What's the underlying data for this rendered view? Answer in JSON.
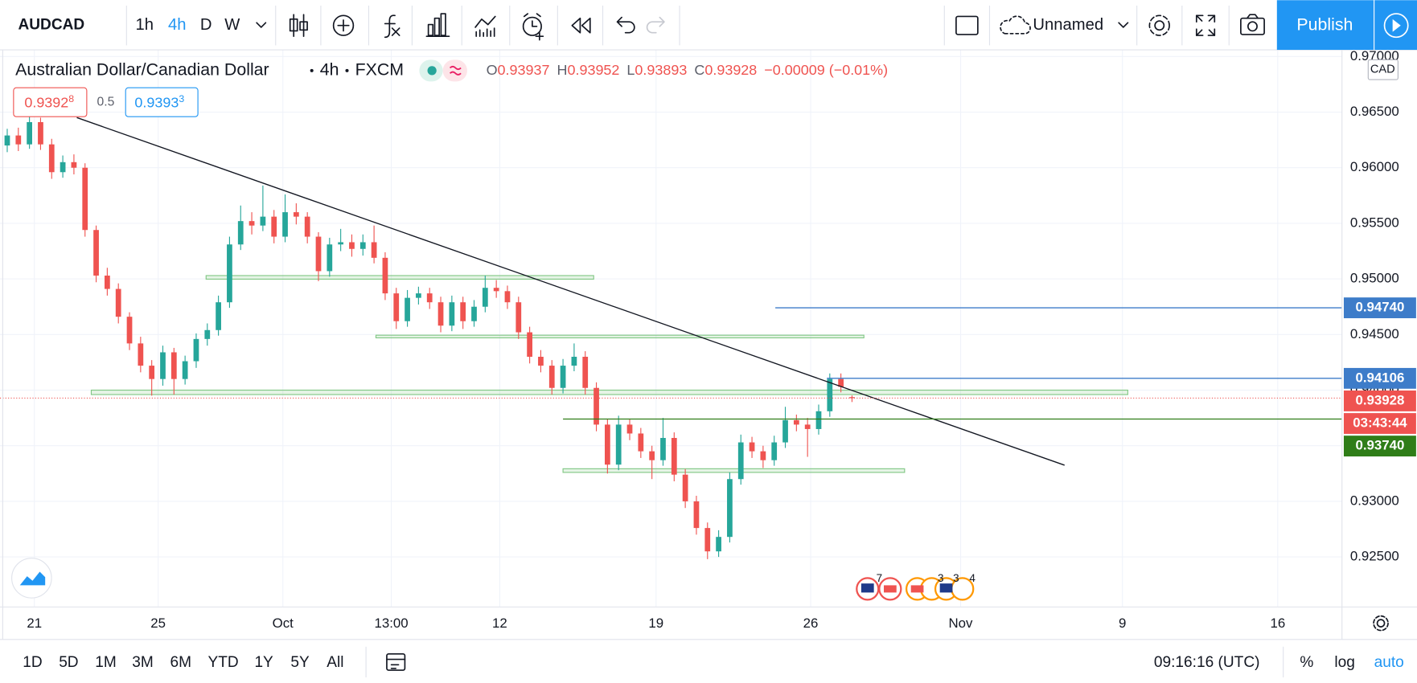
{
  "toolbar": {
    "symbol": "AUDCAD",
    "intervals": [
      "1h",
      "4h",
      "D",
      "W"
    ],
    "active_interval": "4h",
    "layout_name": "Unnamed",
    "publish": "Publish"
  },
  "legend": {
    "name": "Australian Dollar/Canadian Dollar",
    "interval": "4h",
    "exchange": "FXCM",
    "ohlc": [
      {
        "key": "O",
        "value": "0.93937"
      },
      {
        "key": "H",
        "value": "0.93952"
      },
      {
        "key": "L",
        "value": "0.93893"
      },
      {
        "key": "C",
        "value": "0.93928"
      }
    ],
    "change": "−0.00009 (−0.01%)"
  },
  "price_boxes": {
    "sell": {
      "main": "0.9392",
      "pip": "8"
    },
    "spread": "0.5",
    "buy": {
      "main": "0.9393",
      "pip": "3"
    }
  },
  "chart_data": {
    "type": "candlestick",
    "currency": "CAD",
    "up_color": "#26a69a",
    "down_color": "#ef5350",
    "xlim": [
      -0.65,
      120.08
    ],
    "ylim": [
      0.9205,
      0.9706
    ],
    "xticks": [
      {
        "value": 2.44,
        "label": "21"
      },
      {
        "value": 13.58,
        "label": "25"
      },
      {
        "value": 24.8,
        "label": "Oct"
      },
      {
        "value": 34.55,
        "label": "13:00"
      },
      {
        "value": 44.31,
        "label": "12"
      },
      {
        "value": 58.37,
        "label": "19"
      },
      {
        "value": 72.28,
        "label": "26"
      },
      {
        "value": 85.77,
        "label": "Nov"
      },
      {
        "value": 100.33,
        "label": "9"
      },
      {
        "value": 114.3,
        "label": "16"
      }
    ],
    "yticks": [
      {
        "value": 0.925,
        "label": "0.92500"
      },
      {
        "value": 0.93,
        "label": "0.93000"
      },
      {
        "value": 0.935,
        "label": "0.93500"
      },
      {
        "value": 0.94,
        "label": "0.94000"
      },
      {
        "value": 0.945,
        "label": "0.94500"
      },
      {
        "value": 0.95,
        "label": "0.95000"
      },
      {
        "value": 0.955,
        "label": "0.95500"
      },
      {
        "value": 0.96,
        "label": "0.96000"
      },
      {
        "value": 0.965,
        "label": "0.96500"
      },
      {
        "value": 0.97,
        "label": "0.97000"
      }
    ],
    "grid": true,
    "ohlc": [
      [
        0.962,
        0.9635,
        0.9614,
        0.9629
      ],
      [
        0.9629,
        0.9636,
        0.9615,
        0.9621
      ],
      [
        0.9621,
        0.9647,
        0.9617,
        0.9641
      ],
      [
        0.9641,
        0.9645,
        0.9616,
        0.9621
      ],
      [
        0.9621,
        0.9626,
        0.959,
        0.9596
      ],
      [
        0.9596,
        0.9611,
        0.9591,
        0.9605
      ],
      [
        0.9605,
        0.9612,
        0.9594,
        0.96
      ],
      [
        0.96,
        0.9604,
        0.9538,
        0.9544
      ],
      [
        0.9544,
        0.9548,
        0.9497,
        0.9503
      ],
      [
        0.9503,
        0.951,
        0.9485,
        0.9491
      ],
      [
        0.9491,
        0.9496,
        0.946,
        0.9466
      ],
      [
        0.9466,
        0.947,
        0.9436,
        0.9442
      ],
      [
        0.9442,
        0.9448,
        0.9416,
        0.9422
      ],
      [
        0.9422,
        0.9427,
        0.9395,
        0.941
      ],
      [
        0.941,
        0.944,
        0.9404,
        0.9434
      ],
      [
        0.9434,
        0.9438,
        0.9396,
        0.941
      ],
      [
        0.941,
        0.9431,
        0.9405,
        0.9426
      ],
      [
        0.9426,
        0.9451,
        0.942,
        0.9446
      ],
      [
        0.9446,
        0.946,
        0.944,
        0.9454
      ],
      [
        0.9454,
        0.9485,
        0.9449,
        0.9479
      ],
      [
        0.9479,
        0.9538,
        0.9474,
        0.9531
      ],
      [
        0.9531,
        0.9566,
        0.9526,
        0.9552
      ],
      [
        0.9552,
        0.956,
        0.954,
        0.9548
      ],
      [
        0.9548,
        0.9584,
        0.9543,
        0.9556
      ],
      [
        0.9556,
        0.9562,
        0.9532,
        0.9538
      ],
      [
        0.9538,
        0.9576,
        0.9533,
        0.956
      ],
      [
        0.956,
        0.9568,
        0.9549,
        0.9556
      ],
      [
        0.9556,
        0.956,
        0.9532,
        0.9538
      ],
      [
        0.9538,
        0.9542,
        0.9498,
        0.9507
      ],
      [
        0.9507,
        0.9537,
        0.9502,
        0.9531
      ],
      [
        0.9531,
        0.9545,
        0.9525,
        0.9533
      ],
      [
        0.9533,
        0.954,
        0.952,
        0.9527
      ],
      [
        0.9527,
        0.954,
        0.9521,
        0.9533
      ],
      [
        0.9533,
        0.9548,
        0.9514,
        0.9519
      ],
      [
        0.9519,
        0.9524,
        0.9481,
        0.9487
      ],
      [
        0.9487,
        0.9492,
        0.9455,
        0.9462
      ],
      [
        0.9462,
        0.949,
        0.9457,
        0.9483
      ],
      [
        0.9483,
        0.9493,
        0.9477,
        0.9487
      ],
      [
        0.9487,
        0.9492,
        0.9473,
        0.9479
      ],
      [
        0.9479,
        0.9484,
        0.9452,
        0.9458
      ],
      [
        0.9458,
        0.9485,
        0.9453,
        0.9479
      ],
      [
        0.9479,
        0.9484,
        0.9455,
        0.9462
      ],
      [
        0.9462,
        0.9481,
        0.9457,
        0.9475
      ],
      [
        0.9475,
        0.9503,
        0.947,
        0.9492
      ],
      [
        0.9492,
        0.9499,
        0.9483,
        0.9489
      ],
      [
        0.9489,
        0.9494,
        0.9473,
        0.9479
      ],
      [
        0.9479,
        0.9484,
        0.9446,
        0.9452
      ],
      [
        0.9452,
        0.9457,
        0.9424,
        0.943
      ],
      [
        0.943,
        0.9436,
        0.9416,
        0.9422
      ],
      [
        0.9422,
        0.9427,
        0.9396,
        0.9402
      ],
      [
        0.9402,
        0.9428,
        0.9397,
        0.9422
      ],
      [
        0.9422,
        0.9442,
        0.9417,
        0.943
      ],
      [
        0.943,
        0.9435,
        0.9396,
        0.9402
      ],
      [
        0.9402,
        0.9407,
        0.9363,
        0.9369
      ],
      [
        0.9369,
        0.9374,
        0.9325,
        0.9333
      ],
      [
        0.9333,
        0.9377,
        0.9328,
        0.9369
      ],
      [
        0.9369,
        0.9374,
        0.9355,
        0.9361
      ],
      [
        0.9361,
        0.9366,
        0.9339,
        0.9345
      ],
      [
        0.9345,
        0.935,
        0.932,
        0.9337
      ],
      [
        0.9337,
        0.9375,
        0.9332,
        0.9357
      ],
      [
        0.9357,
        0.9362,
        0.9318,
        0.9324
      ],
      [
        0.9324,
        0.9329,
        0.9294,
        0.93
      ],
      [
        0.93,
        0.9305,
        0.927,
        0.9276
      ],
      [
        0.9276,
        0.9281,
        0.9248,
        0.9255
      ],
      [
        0.9255,
        0.9274,
        0.925,
        0.9268
      ],
      [
        0.9268,
        0.9326,
        0.9263,
        0.932
      ],
      [
        0.932,
        0.936,
        0.9315,
        0.9353
      ],
      [
        0.9353,
        0.9358,
        0.9339,
        0.9345
      ],
      [
        0.9345,
        0.935,
        0.933,
        0.9337
      ],
      [
        0.9337,
        0.9359,
        0.9332,
        0.9353
      ],
      [
        0.9353,
        0.9385,
        0.9348,
        0.9373
      ],
      [
        0.9373,
        0.9378,
        0.9363,
        0.9369
      ],
      [
        0.9369,
        0.9375,
        0.934,
        0.9365
      ],
      [
        0.9365,
        0.9387,
        0.936,
        0.9381
      ],
      [
        0.9381,
        0.9415,
        0.9376,
        0.941
      ],
      [
        0.941,
        0.9415,
        0.9398,
        0.9403
      ],
      [
        0.93937,
        0.93952,
        0.93893,
        0.93928
      ]
    ],
    "trendline": {
      "points": [
        [
          6.26,
          0.96451
        ],
        [
          95.12,
          0.93325
        ]
      ],
      "color": "#131722"
    },
    "zones": [
      {
        "x": [
          17.89,
          52.76
        ],
        "y": [
          0.94998,
          0.9503
        ]
      },
      {
        "x": [
          33.17,
          77.07
        ],
        "y": [
          0.9447,
          0.94494
        ]
      },
      {
        "x": [
          7.56,
          100.81
        ],
        "y": [
          0.9396,
          0.94
        ]
      },
      {
        "x": [
          50,
          80.73
        ],
        "y": [
          0.9326,
          0.93293
        ]
      }
    ],
    "zone_color": "#81c784",
    "levels": [
      {
        "price": 0.9474,
        "label": "0.94740",
        "from": 69.1,
        "color": "#3d7cc9"
      },
      {
        "price": 0.94106,
        "from": 73.74,
        "color": "#3d7cc9"
      },
      {
        "price": 0.9374,
        "label": "0.93740",
        "from": 50,
        "color": "#2f7d18"
      }
    ],
    "last_price": {
      "value": 0.93928,
      "label": "0.93928",
      "countdown": "03:43:44",
      "color": "#ef5350"
    }
  },
  "events": [
    "7",
    "3",
    "3",
    "4"
  ],
  "bottom_bar": {
    "ranges": [
      "1D",
      "5D",
      "1M",
      "3M",
      "6M",
      "YTD",
      "1Y",
      "5Y",
      "All"
    ],
    "clock": "09:16:16 (UTC)",
    "options": [
      "%",
      "log",
      "auto"
    ],
    "active_option": "auto"
  }
}
